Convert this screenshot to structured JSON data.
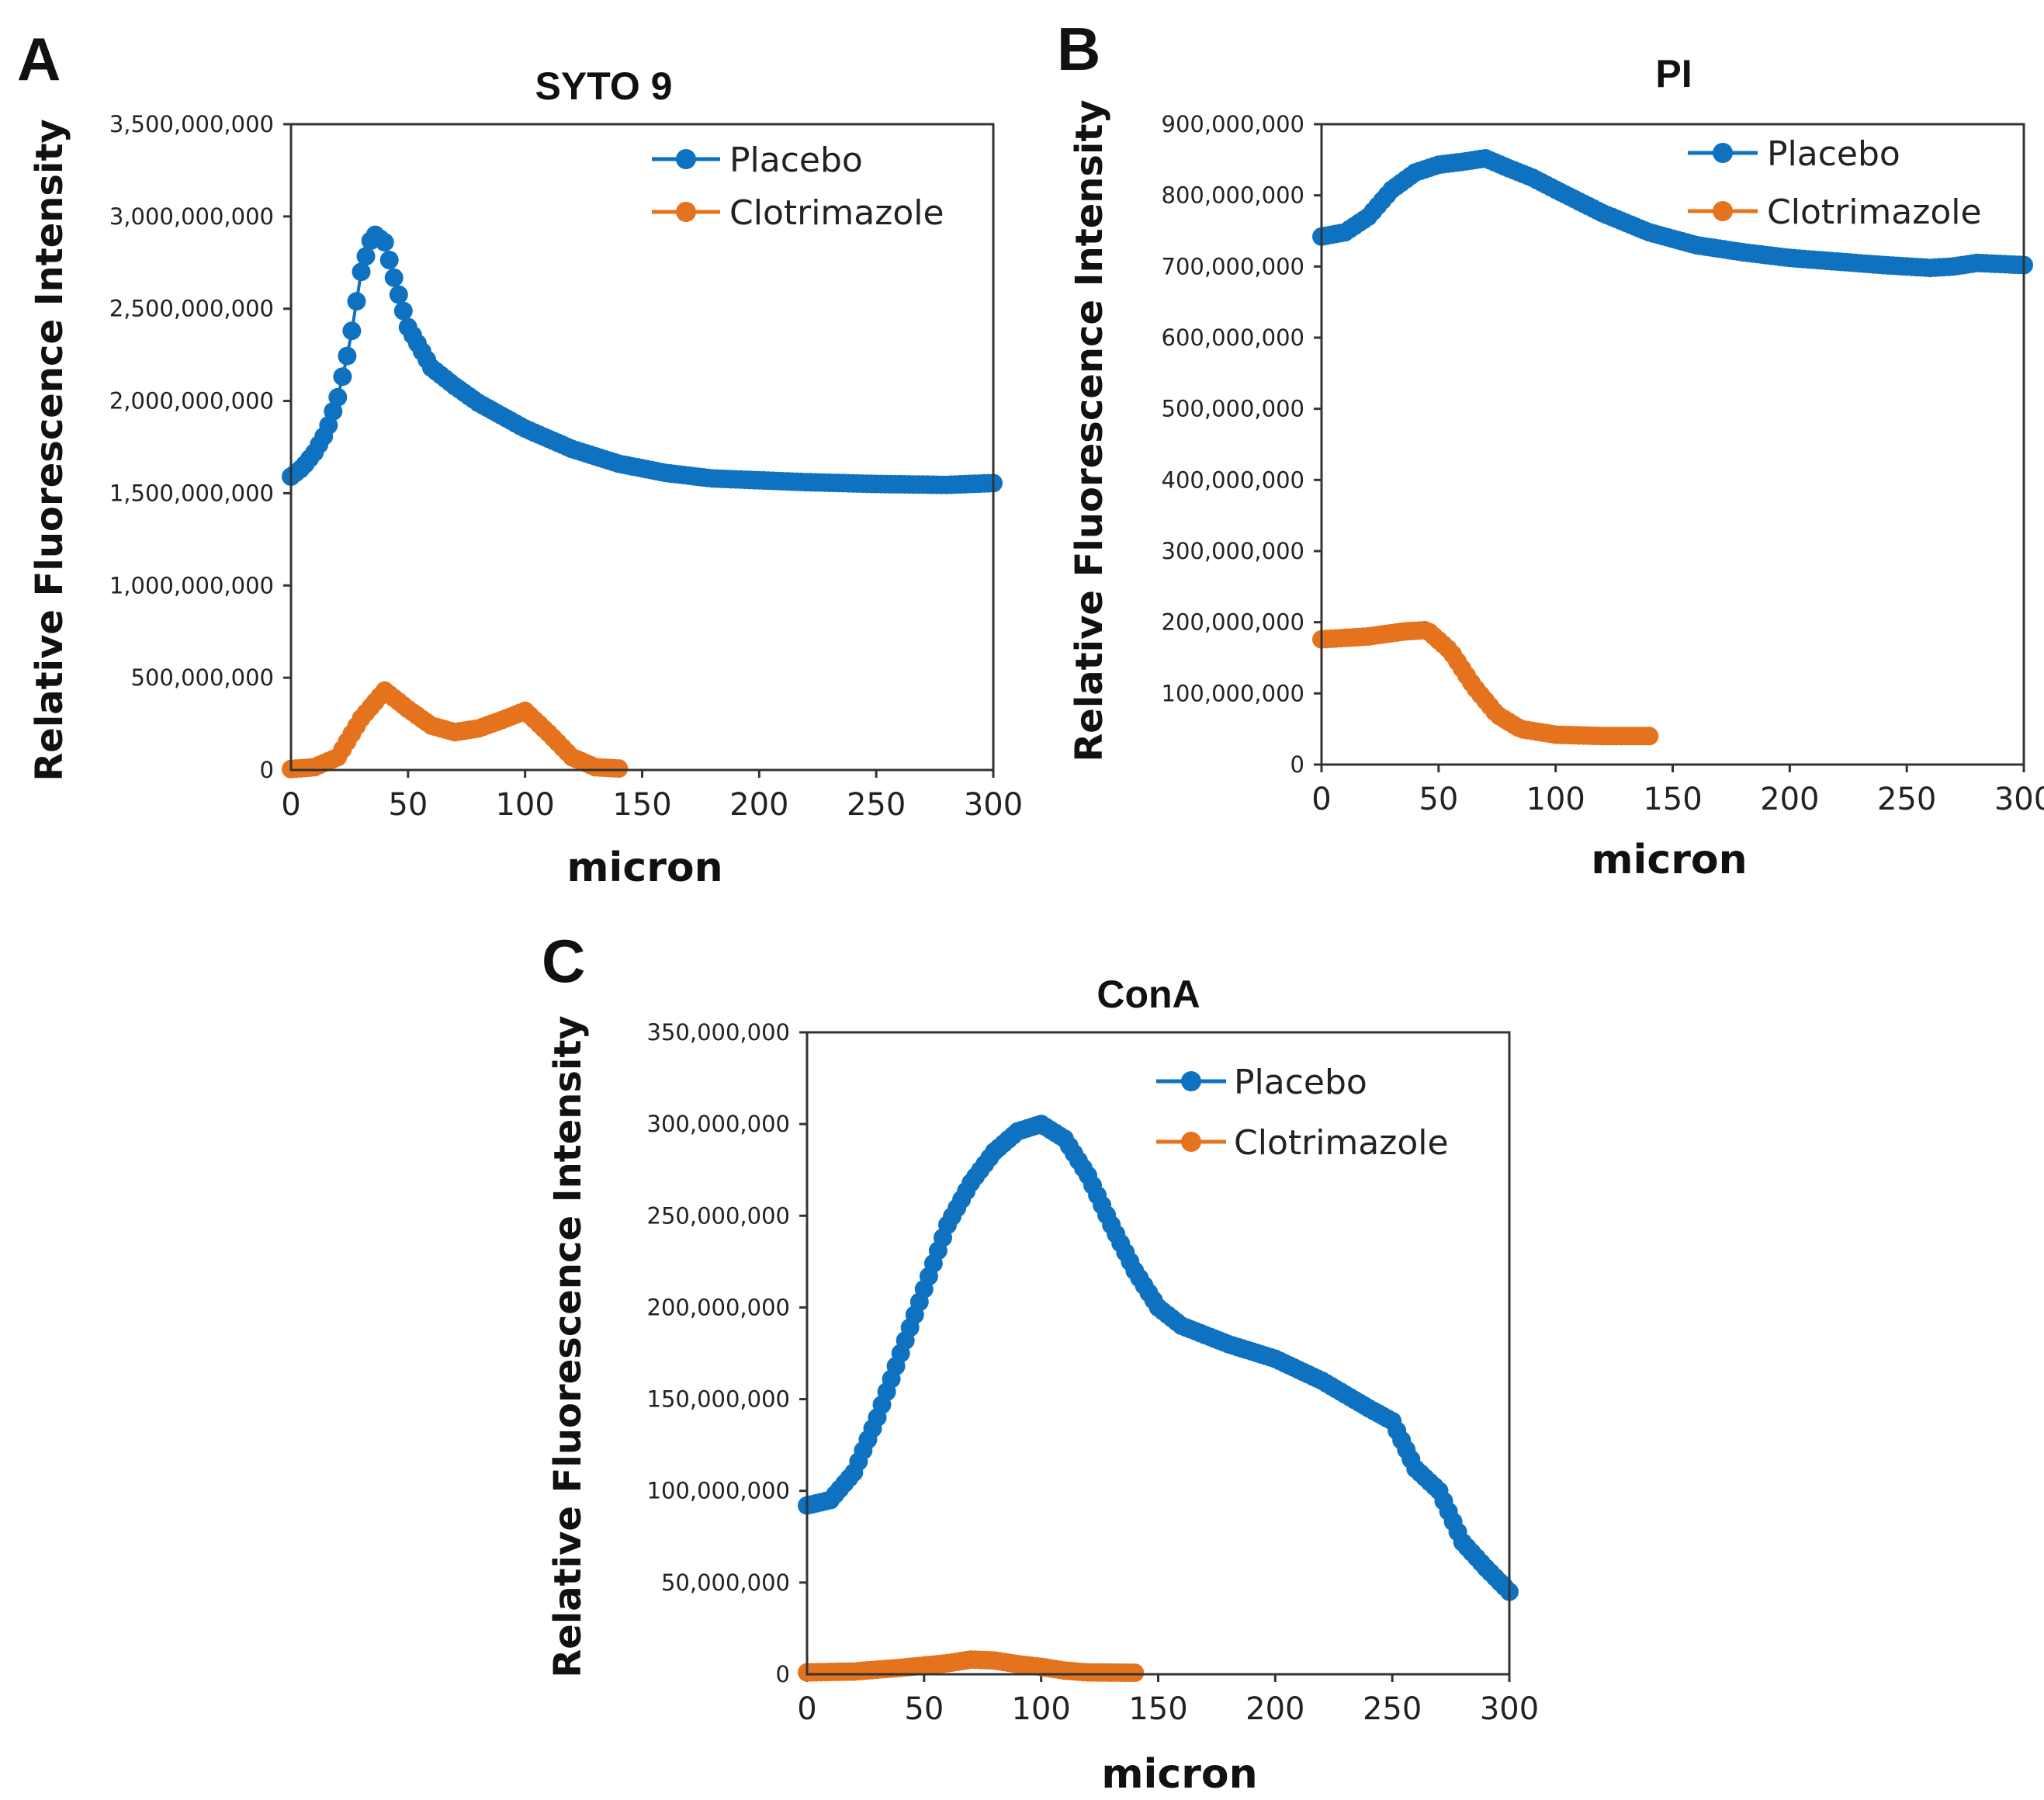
{
  "figure": {
    "panel_labels": [
      "A",
      "B",
      "C"
    ]
  },
  "colors": {
    "placebo": "#0f72c0",
    "clotrimazole": "#e5731e",
    "axis": "#333333"
  },
  "chart_data": [
    {
      "panel": "A",
      "type": "scatter",
      "title": "SYTO 9",
      "xlabel": "micron",
      "ylabel": "Relative Fluorescence Intensity",
      "xlim": [
        0,
        300
      ],
      "ylim": [
        0,
        3500000000
      ],
      "xticks": [
        0,
        50,
        100,
        150,
        200,
        250,
        300
      ],
      "xtick_labels": [
        "0",
        "50",
        "100",
        "150",
        "200",
        "250",
        "300"
      ],
      "yticks": [
        0,
        500000000,
        1000000000,
        1500000000,
        2000000000,
        2500000000,
        3000000000,
        3500000000
      ],
      "ytick_labels": [
        "0",
        "500,000,000",
        "1,000,000,000",
        "1,500,000,000",
        "2,000,000,000",
        "2,500,000,000",
        "3,000,000,000",
        "3,500,000,000"
      ],
      "legend_position": "top-right",
      "series": [
        {
          "name": "Placebo",
          "color_key": "placebo",
          "x_end": 300,
          "anchors": [
            [
              0,
              1590000000
            ],
            [
              5,
              1640000000
            ],
            [
              10,
              1720000000
            ],
            [
              15,
              1830000000
            ],
            [
              20,
              2020000000
            ],
            [
              25,
              2300000000
            ],
            [
              30,
              2700000000
            ],
            [
              35,
              2910000000
            ],
            [
              40,
              2860000000
            ],
            [
              45,
              2620000000
            ],
            [
              50,
              2400000000
            ],
            [
              60,
              2180000000
            ],
            [
              70,
              2080000000
            ],
            [
              80,
              1990000000
            ],
            [
              90,
              1920000000
            ],
            [
              100,
              1850000000
            ],
            [
              120,
              1740000000
            ],
            [
              140,
              1660000000
            ],
            [
              160,
              1610000000
            ],
            [
              180,
              1580000000
            ],
            [
              200,
              1570000000
            ],
            [
              220,
              1560000000
            ],
            [
              250,
              1550000000
            ],
            [
              280,
              1545000000
            ],
            [
              300,
              1555000000
            ]
          ]
        },
        {
          "name": "Clotrimazole",
          "color_key": "clotrimazole",
          "x_end": 140,
          "anchors": [
            [
              0,
              5000000
            ],
            [
              10,
              15000000
            ],
            [
              20,
              70000000
            ],
            [
              30,
              280000000
            ],
            [
              40,
              430000000
            ],
            [
              50,
              330000000
            ],
            [
              60,
              240000000
            ],
            [
              70,
              205000000
            ],
            [
              80,
              225000000
            ],
            [
              90,
              270000000
            ],
            [
              100,
              320000000
            ],
            [
              110,
              200000000
            ],
            [
              120,
              70000000
            ],
            [
              130,
              15000000
            ],
            [
              140,
              8000000
            ]
          ]
        }
      ]
    },
    {
      "panel": "B",
      "type": "scatter",
      "title": "PI",
      "xlabel": "micron",
      "ylabel": "Relative Fluorescence Intensity",
      "xlim": [
        0,
        300
      ],
      "ylim": [
        0,
        900000000
      ],
      "xticks": [
        0,
        50,
        100,
        150,
        200,
        250,
        300
      ],
      "xtick_labels": [
        "0",
        "50",
        "100",
        "150",
        "200",
        "250",
        "300"
      ],
      "yticks": [
        0,
        100000000,
        200000000,
        300000000,
        400000000,
        500000000,
        600000000,
        700000000,
        800000000,
        900000000
      ],
      "ytick_labels": [
        "0",
        "100,000,000",
        "200,000,000",
        "300,000,000",
        "400,000,000",
        "500,000,000",
        "600,000,000",
        "700,000,000",
        "800,000,000",
        "900,000,000"
      ],
      "legend_position": "top-right",
      "series": [
        {
          "name": "Placebo",
          "color_key": "placebo",
          "x_end": 300,
          "anchors": [
            [
              0,
              742000000
            ],
            [
              10,
              748000000
            ],
            [
              20,
              770000000
            ],
            [
              30,
              808000000
            ],
            [
              40,
              832000000
            ],
            [
              50,
              843000000
            ],
            [
              60,
              847000000
            ],
            [
              70,
              852000000
            ],
            [
              80,
              838000000
            ],
            [
              90,
              825000000
            ],
            [
              100,
              808000000
            ],
            [
              120,
              775000000
            ],
            [
              140,
              748000000
            ],
            [
              160,
              730000000
            ],
            [
              180,
              720000000
            ],
            [
              200,
              712000000
            ],
            [
              220,
              707000000
            ],
            [
              240,
              702000000
            ],
            [
              260,
              698000000
            ],
            [
              270,
              700000000
            ],
            [
              280,
              705000000
            ],
            [
              300,
              702000000
            ]
          ]
        },
        {
          "name": "Clotrimazole",
          "color_key": "clotrimazole",
          "x_end": 140,
          "anchors": [
            [
              0,
              176000000
            ],
            [
              20,
              180000000
            ],
            [
              35,
              187000000
            ],
            [
              45,
              189000000
            ],
            [
              55,
              160000000
            ],
            [
              65,
              110000000
            ],
            [
              75,
              70000000
            ],
            [
              85,
              50000000
            ],
            [
              100,
              42000000
            ],
            [
              120,
              40000000
            ],
            [
              140,
              40000000
            ]
          ]
        }
      ]
    },
    {
      "panel": "C",
      "type": "scatter",
      "title": "ConA",
      "xlabel": "micron",
      "ylabel": "Relative Fluorescence Intensity",
      "xlim": [
        0,
        300
      ],
      "ylim": [
        0,
        350000000
      ],
      "xticks": [
        0,
        50,
        100,
        150,
        200,
        250,
        300
      ],
      "xtick_labels": [
        "0",
        "50",
        "100",
        "150",
        "200",
        "250",
        "300"
      ],
      "yticks": [
        0,
        50000000,
        100000000,
        150000000,
        200000000,
        250000000,
        300000000,
        350000000
      ],
      "ytick_labels": [
        "0",
        "50,000,000",
        "100,000,000",
        "150,000,000",
        "200,000,000",
        "250,000,000",
        "300,000,000",
        "350,000,000"
      ],
      "legend_position": "top-right",
      "series": [
        {
          "name": "Placebo",
          "color_key": "placebo",
          "x_end": 300,
          "anchors": [
            [
              0,
              92000000
            ],
            [
              10,
              95000000
            ],
            [
              20,
              110000000
            ],
            [
              30,
              140000000
            ],
            [
              40,
              175000000
            ],
            [
              50,
              210000000
            ],
            [
              60,
              245000000
            ],
            [
              70,
              268000000
            ],
            [
              80,
              285000000
            ],
            [
              90,
              296000000
            ],
            [
              100,
              300000000
            ],
            [
              110,
              292000000
            ],
            [
              120,
              272000000
            ],
            [
              130,
              245000000
            ],
            [
              140,
              220000000
            ],
            [
              150,
              200000000
            ],
            [
              160,
              190000000
            ],
            [
              180,
              180000000
            ],
            [
              200,
              172000000
            ],
            [
              220,
              160000000
            ],
            [
              240,
              145000000
            ],
            [
              250,
              138000000
            ],
            [
              260,
              112000000
            ],
            [
              270,
              100000000
            ],
            [
              280,
              72000000
            ],
            [
              290,
              58000000
            ],
            [
              300,
              45000000
            ]
          ]
        },
        {
          "name": "Clotrimazole",
          "color_key": "clotrimazole",
          "x_end": 140,
          "anchors": [
            [
              0,
              1000000
            ],
            [
              20,
              1500000
            ],
            [
              40,
              3500000
            ],
            [
              60,
              6000000
            ],
            [
              70,
              8000000
            ],
            [
              80,
              7500000
            ],
            [
              90,
              5500000
            ],
            [
              100,
              4000000
            ],
            [
              110,
              2000000
            ],
            [
              120,
              1000000
            ],
            [
              140,
              800000
            ]
          ]
        }
      ]
    }
  ]
}
